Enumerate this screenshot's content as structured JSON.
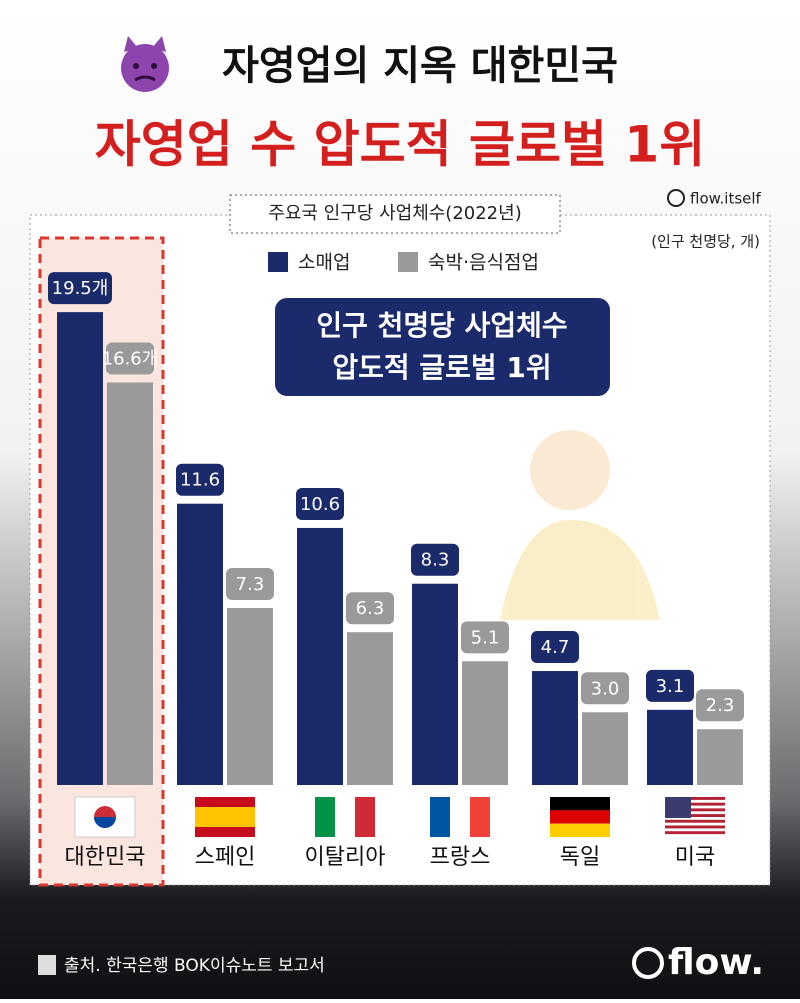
{
  "header": {
    "title": "자영업의 지옥 대한민국",
    "subtitle": "자영업 수 압도적 글로벌 1위",
    "account": "flow.itself"
  },
  "chart_data": {
    "type": "bar",
    "title": "주요국 인구당 사업체수(2022년)",
    "unit": "(인구 천명당, 개)",
    "annotations": [
      "인구 천명당 사업체수",
      "압도적 글로벌 1위"
    ],
    "categories": [
      "대한민국",
      "스페인",
      "이탈리아",
      "프랑스",
      "독일",
      "미국"
    ],
    "series": [
      {
        "name": "소매업",
        "color": "#1b2a6b",
        "values": [
          19.5,
          11.6,
          10.6,
          8.3,
          4.7,
          3.1
        ],
        "value_labels": [
          "19.5개",
          "11.6",
          "10.6",
          "8.3",
          "4.7",
          "3.1"
        ]
      },
      {
        "name": "숙박·음식점업",
        "color": "#9a9a9a",
        "values": [
          16.6,
          7.3,
          6.3,
          5.1,
          3.0,
          2.3
        ],
        "value_labels": [
          "16.6개",
          "7.3",
          "6.3",
          "5.1",
          "3.0",
          "2.3"
        ]
      }
    ],
    "ylim": [
      0,
      20
    ]
  },
  "footer": {
    "source": "출처. 한국은행 BOK이슈노트 보고서",
    "logo": "flow."
  }
}
